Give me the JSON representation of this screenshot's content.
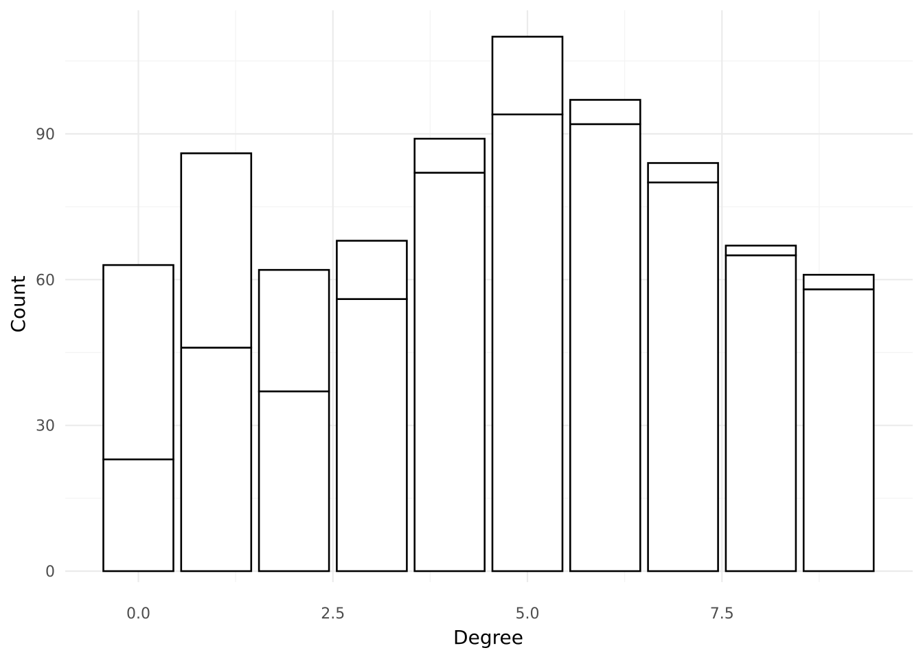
{
  "chart_data": {
    "type": "bar",
    "stacked": true,
    "x": [
      0,
      1,
      2,
      3,
      4,
      5,
      6,
      7,
      8,
      9
    ],
    "series": [
      {
        "values": [
          23,
          46,
          37,
          56,
          82,
          94,
          92,
          80,
          65,
          58
        ]
      },
      {
        "values": [
          40,
          40,
          25,
          12,
          7,
          16,
          5,
          4,
          2,
          3
        ]
      }
    ],
    "totals": [
      63,
      86,
      62,
      68,
      89,
      110,
      97,
      84,
      67,
      61
    ],
    "xlabel": "Degree",
    "ylabel": "Count",
    "xlim": [
      -0.5,
      9.5
    ],
    "ylim": [
      0,
      110
    ],
    "x_ticks": [
      0.0,
      2.5,
      5.0,
      7.5
    ],
    "x_tick_labels": [
      "0.0",
      "2.5",
      "5.0",
      "7.5"
    ],
    "y_ticks": [
      0,
      30,
      60,
      90
    ],
    "y_tick_labels": [
      "0",
      "30",
      "60",
      "90"
    ],
    "grid": true,
    "legend": "none",
    "colors": {
      "fill": "#ffffff",
      "outline": "#000000",
      "grid": "#ebebeb",
      "text": "#4d4d4d"
    }
  }
}
